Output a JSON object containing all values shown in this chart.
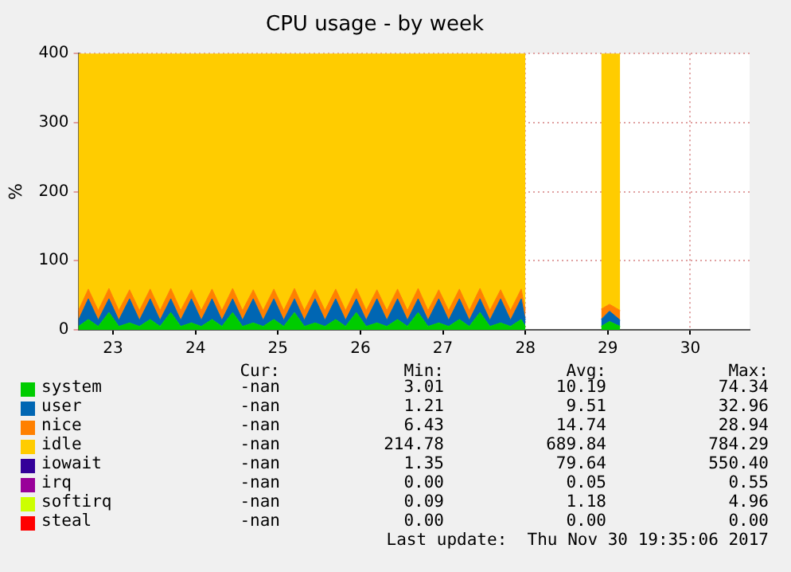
{
  "chart_data": {
    "type": "area",
    "stacked": true,
    "title": "CPU usage - by week",
    "ylabel": "%",
    "x": [
      22.58,
      22.7,
      22.82,
      22.95,
      23.07,
      23.2,
      23.32,
      23.45,
      23.57,
      23.7,
      23.82,
      23.95,
      24.07,
      24.2,
      24.32,
      24.45,
      24.57,
      24.7,
      24.82,
      24.95,
      25.07,
      25.2,
      25.32,
      25.45,
      25.57,
      25.7,
      25.82,
      25.95,
      26.07,
      26.2,
      26.32,
      26.45,
      26.57,
      26.7,
      26.82,
      26.95,
      27.07,
      27.2,
      27.32,
      27.45,
      27.57,
      27.7,
      27.82,
      27.95,
      28.0,
      28.45,
      28.92,
      29.02,
      29.15
    ],
    "xlim": [
      22.58,
      30.72
    ],
    "xticks": [
      23,
      24,
      25,
      26,
      27,
      28,
      29,
      30
    ],
    "ylim": [
      0,
      400
    ],
    "yticks": [
      0,
      100,
      200,
      300,
      400
    ],
    "grid": true,
    "legend": "bottom",
    "series": [
      {
        "name": "system",
        "color": "#00cc00",
        "values": [
          5,
          15,
          5,
          25,
          5,
          10,
          5,
          15,
          5,
          25,
          5,
          10,
          5,
          15,
          5,
          25,
          5,
          10,
          5,
          15,
          5,
          25,
          5,
          10,
          5,
          15,
          5,
          25,
          5,
          10,
          5,
          15,
          5,
          25,
          5,
          10,
          5,
          15,
          5,
          25,
          5,
          10,
          5,
          15,
          5,
          null,
          5,
          12,
          5
        ]
      },
      {
        "name": "user",
        "color": "#0066b3",
        "values": [
          9,
          30,
          9,
          20,
          9,
          35,
          9,
          30,
          9,
          20,
          9,
          35,
          9,
          30,
          9,
          20,
          9,
          35,
          9,
          30,
          9,
          20,
          9,
          35,
          9,
          30,
          9,
          20,
          9,
          35,
          9,
          30,
          9,
          20,
          9,
          35,
          9,
          30,
          9,
          20,
          9,
          35,
          9,
          30,
          9,
          null,
          10,
          15,
          9
        ]
      },
      {
        "name": "nice",
        "color": "#ff8000",
        "values": [
          14,
          14,
          14,
          15,
          14,
          13,
          14,
          14,
          14,
          15,
          14,
          13,
          14,
          14,
          14,
          15,
          14,
          13,
          14,
          14,
          14,
          15,
          14,
          13,
          14,
          14,
          14,
          15,
          14,
          13,
          14,
          14,
          14,
          15,
          14,
          13,
          14,
          14,
          14,
          15,
          14,
          13,
          14,
          14,
          14,
          null,
          15,
          10,
          14
        ]
      },
      {
        "name": "idle",
        "color": "#ffcc00",
        "values": [
          372,
          341,
          372,
          340,
          372,
          342,
          372,
          341,
          372,
          340,
          372,
          342,
          372,
          341,
          372,
          340,
          372,
          342,
          372,
          341,
          372,
          340,
          372,
          342,
          372,
          341,
          372,
          340,
          372,
          342,
          372,
          341,
          372,
          340,
          372,
          342,
          372,
          341,
          372,
          340,
          372,
          342,
          372,
          341,
          372,
          null,
          370,
          363,
          372
        ]
      },
      {
        "name": "iowait",
        "color": "#330099",
        "values": [
          null,
          null,
          null,
          null,
          null,
          null,
          null,
          null,
          null,
          null,
          null,
          null,
          null,
          null,
          null,
          null,
          null,
          null,
          null,
          null,
          null,
          null,
          null,
          null,
          null,
          null,
          null,
          null,
          null,
          null,
          null,
          null,
          null,
          null,
          null,
          null,
          null,
          null,
          null,
          null,
          null,
          null,
          null,
          null,
          null,
          null,
          null,
          null,
          null
        ]
      },
      {
        "name": "irq",
        "color": "#990099",
        "values": [
          null,
          null,
          null,
          null,
          null,
          null,
          null,
          null,
          null,
          null,
          null,
          null,
          null,
          null,
          null,
          null,
          null,
          null,
          null,
          null,
          null,
          null,
          null,
          null,
          null,
          null,
          null,
          null,
          null,
          null,
          null,
          null,
          null,
          null,
          null,
          null,
          null,
          null,
          null,
          null,
          null,
          null,
          null,
          null,
          null,
          null,
          null,
          null,
          null
        ]
      },
      {
        "name": "softirq",
        "color": "#ccff00",
        "values": [
          null,
          null,
          null,
          null,
          null,
          null,
          null,
          null,
          null,
          null,
          null,
          null,
          null,
          null,
          null,
          null,
          null,
          null,
          null,
          null,
          null,
          null,
          null,
          null,
          null,
          null,
          null,
          null,
          null,
          null,
          null,
          null,
          null,
          null,
          null,
          null,
          null,
          null,
          null,
          null,
          null,
          null,
          null,
          null,
          null,
          null,
          null,
          null,
          null
        ]
      },
      {
        "name": "steal",
        "color": "#ff0000",
        "values": [
          null,
          null,
          null,
          null,
          null,
          null,
          null,
          null,
          null,
          null,
          null,
          null,
          null,
          null,
          null,
          null,
          null,
          null,
          null,
          null,
          null,
          null,
          null,
          null,
          null,
          null,
          null,
          null,
          null,
          null,
          null,
          null,
          null,
          null,
          null,
          null,
          null,
          null,
          null,
          null,
          null,
          null,
          null,
          null,
          null,
          null,
          null,
          null,
          null
        ]
      }
    ],
    "annotations": [
      "Cur:",
      "Min:",
      "Avg:",
      "Max:",
      "-nan",
      "3.01",
      "10.19",
      "74.34",
      "-nan",
      "1.21",
      "9.51",
      "32.96",
      "-nan",
      "6.43",
      "14.74",
      "28.94",
      "-nan",
      "214.78",
      "689.84",
      "784.29",
      "-nan",
      "1.35",
      "79.64",
      "550.40",
      "-nan",
      "0.00",
      "0.05",
      "0.55",
      "-nan",
      "0.09",
      "1.18",
      "4.96",
      "-nan",
      "0.00",
      "0.00",
      "0.00",
      "Last update:  Thu Nov 30 19:35:06 2017"
    ]
  }
}
